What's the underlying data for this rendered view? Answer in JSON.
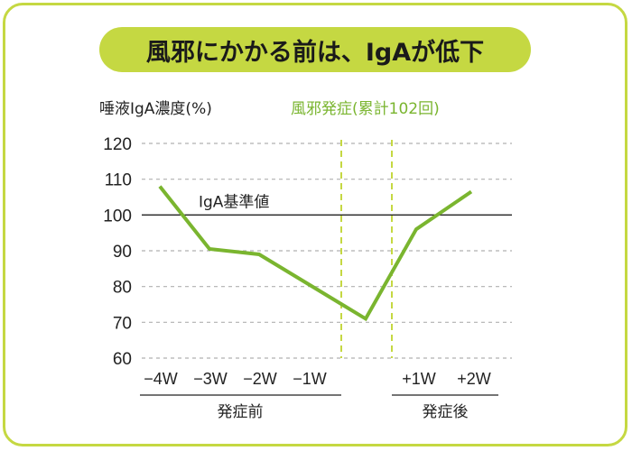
{
  "title": "風邪にかかる前は、IgAが低下",
  "colors": {
    "accent": "#c5d842",
    "line": "#7ab52f",
    "grid": "#b0b0b0",
    "text": "#222222"
  },
  "chart_data": {
    "type": "line",
    "title": "風邪にかかる前は、IgAが低下",
    "ylabel": "唾液IgA濃度(%)",
    "subtitle": "風邪発症(累計102回)",
    "ylim": [
      60,
      120
    ],
    "yticks": [
      60,
      70,
      80,
      90,
      100,
      110,
      120
    ],
    "grid": true,
    "categories": [
      "−4W",
      "−3W",
      "−2W",
      "−1W",
      "発症",
      "+1W",
      "+2W"
    ],
    "x_tick_labels": [
      "−4W",
      "−3W",
      "−2W",
      "−1W",
      "+1W",
      "+2W"
    ],
    "series": [
      {
        "values": [
          108,
          90.5,
          89,
          null,
          71,
          96,
          106.5
        ]
      }
    ],
    "reference_line": {
      "value": 100,
      "label": "IgA基準値"
    },
    "groups": [
      {
        "label": "発症前",
        "categories": [
          "−4W",
          "−3W",
          "−2W",
          "−1W"
        ]
      },
      {
        "label": "発症後",
        "categories": [
          "+1W",
          "+2W"
        ]
      }
    ],
    "onset_markers": [
      "dashed-green-lines"
    ]
  }
}
